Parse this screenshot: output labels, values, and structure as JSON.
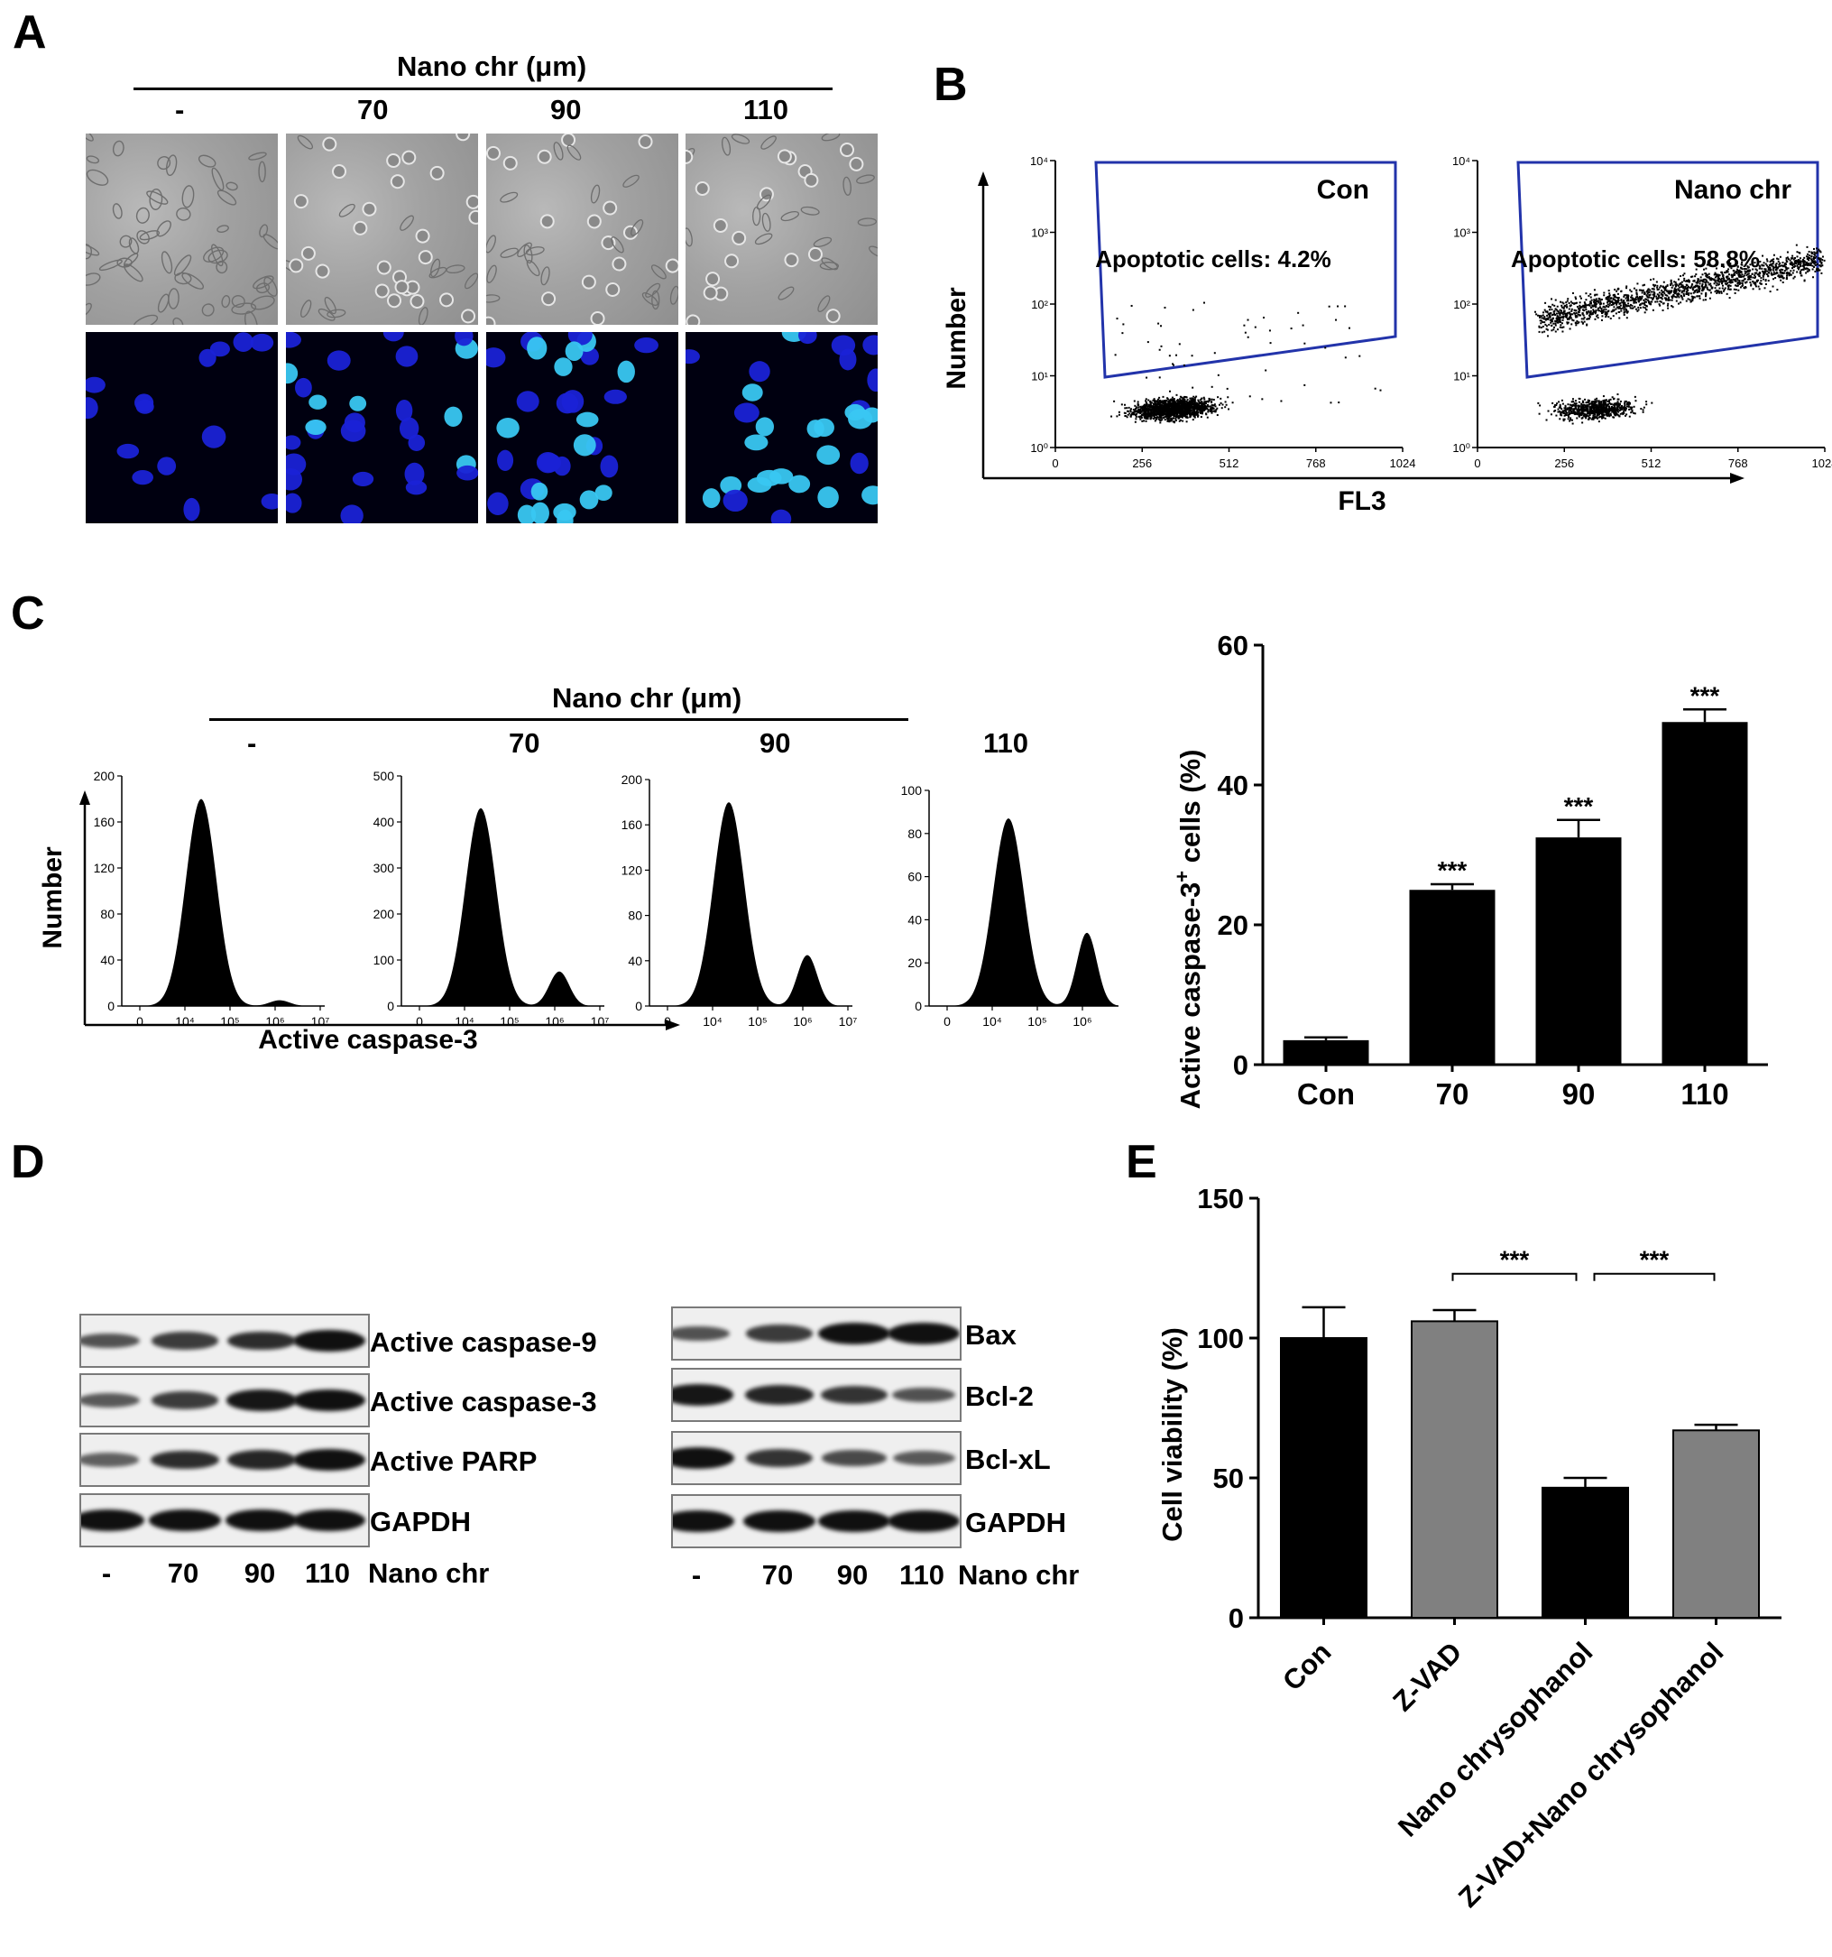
{
  "panel_letters": [
    "A",
    "B",
    "C",
    "D",
    "E"
  ],
  "panelA": {
    "header": "Nano chr (μm)",
    "columns": [
      "-",
      "70",
      "90",
      "110"
    ]
  },
  "panelB": {
    "ylabel": "Number",
    "xlabel": "FL3",
    "yticks": [
      "10⁰",
      "10¹",
      "10²",
      "10³",
      "10⁴"
    ],
    "xticks": [
      "0",
      "256",
      "512",
      "768",
      "1024"
    ],
    "plots": [
      {
        "title": "Con",
        "annotation": "Apoptotic cells: 4.2%"
      },
      {
        "title": "Nano chr",
        "annotation": "Apoptotic cells: 58.8%"
      }
    ]
  },
  "panelC_hist": {
    "header": "Nano chr (μm)",
    "ylabel": "Number",
    "xlabel": "Active caspase-3",
    "xticks": [
      "0",
      "10⁴",
      "10⁵",
      "10⁶",
      "10⁷"
    ],
    "plots": [
      {
        "title": "-",
        "yticks": [
          "0",
          "40",
          "80",
          "120",
          "160",
          "200"
        ],
        "ymax": 200,
        "peak1": 180,
        "peak2": 5
      },
      {
        "title": "70",
        "yticks": [
          "0",
          "100",
          "200",
          "300",
          "400",
          "500"
        ],
        "ymax": 500,
        "peak1": 430,
        "peak2": 75
      },
      {
        "title": "90",
        "yticks": [
          "0",
          "40",
          "80",
          "120",
          "160",
          "200"
        ],
        "ymax": 200,
        "peak1": 180,
        "peak2": 45
      },
      {
        "title": "110",
        "yticks": [
          "0",
          "20",
          "40",
          "60",
          "80",
          "100"
        ],
        "ymax": 100,
        "peak1": 87,
        "peak2": 34
      }
    ]
  },
  "chart_data": [
    {
      "type": "bar",
      "categories": [
        "Con",
        "70",
        "90",
        "110"
      ],
      "values": [
        3.5,
        25,
        32.5,
        49
      ],
      "errors": [
        0.4,
        0.8,
        2.5,
        1.8
      ],
      "significance": [
        "",
        "***",
        "***",
        "***"
      ],
      "ylabel_main": "Active caspase-3",
      "ylabel_sup": "+",
      "ylabel_tail": " cells (%)",
      "ylim": [
        0,
        60
      ],
      "yticks": [
        "0",
        "20",
        "40",
        "60"
      ],
      "color": "#000000"
    },
    {
      "type": "bar",
      "categories": [
        "Con",
        "Z-VAD",
        "Nano chrysophanol",
        "Z-VAD+Nano chrysophanol"
      ],
      "values": [
        100,
        106,
        46.5,
        67
      ],
      "errors": [
        11,
        4,
        3.5,
        2
      ],
      "colors": [
        "#000000",
        "#808080",
        "#000000",
        "#808080"
      ],
      "ylabel": "Cell viability (%)",
      "ylim": [
        0,
        150
      ],
      "yticks": [
        "0",
        "50",
        "100",
        "150"
      ],
      "brackets": [
        {
          "from": 1,
          "to": 2,
          "label": "***"
        },
        {
          "from": 2,
          "to": 3,
          "label": "***"
        }
      ]
    }
  ],
  "panelD": {
    "left": {
      "rows": [
        {
          "label": "Active caspase-9",
          "intensity": [
            0.55,
            0.7,
            0.8,
            1.0
          ]
        },
        {
          "label": "Active caspase-3",
          "intensity": [
            0.5,
            0.7,
            0.95,
            1.0
          ]
        },
        {
          "label": "Active PARP",
          "intensity": [
            0.45,
            0.8,
            0.85,
            1.0
          ]
        },
        {
          "label": "GAPDH",
          "intensity": [
            1.0,
            1.0,
            1.0,
            1.0
          ]
        }
      ],
      "lanes": [
        "-",
        "70",
        "90",
        "110"
      ],
      "treatment": "Nano chr"
    },
    "right": {
      "rows": [
        {
          "label": "Bax",
          "intensity": [
            0.55,
            0.7,
            1.0,
            1.0
          ]
        },
        {
          "label": "Bcl-2",
          "intensity": [
            0.95,
            0.85,
            0.75,
            0.55
          ]
        },
        {
          "label": "Bcl-xL",
          "intensity": [
            1.0,
            0.75,
            0.6,
            0.5
          ]
        },
        {
          "label": "GAPDH",
          "intensity": [
            1.0,
            1.0,
            1.0,
            1.0
          ]
        }
      ],
      "lanes": [
        "-",
        "70",
        "90",
        "110"
      ],
      "treatment": "Nano chr"
    }
  }
}
